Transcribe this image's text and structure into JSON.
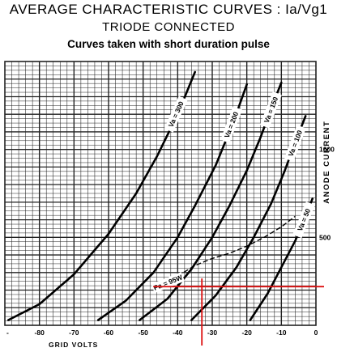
{
  "header": {
    "title_line1": "AVERAGE CHARACTERISTIC CURVES : Ia/Vg1",
    "title_line2": "TRIODE CONNECTED",
    "subtitle": "Curves taken with short duration pulse"
  },
  "chart_data": {
    "type": "line",
    "title": "AVERAGE CHARACTERISTIC CURVES : Ia/Vg1",
    "subtitle": "Curves taken with short duration pulse",
    "xlabel": "GRID VOLTS",
    "ylabel": "ANODE CURRENT",
    "xlim": [
      -90,
      0
    ],
    "ylim": [
      0,
      1500
    ],
    "x_ticks": [
      -80,
      -70,
      -60,
      -50,
      -40,
      -30,
      -20,
      -10,
      0
    ],
    "x_tick_labels": [
      "-80",
      "-70",
      "-60",
      "-50",
      "-40",
      "-30",
      "-20",
      "-10",
      "0"
    ],
    "y_ticks": [
      500,
      1000
    ],
    "y_tick_labels": [
      "500",
      "1000"
    ],
    "grid": true,
    "series": [
      {
        "name": "Va = 300",
        "x": [
          -89,
          -80,
          -70,
          -60,
          -52,
          -46,
          -40,
          -35
        ],
        "y": [
          30,
          120,
          290,
          520,
          750,
          960,
          1200,
          1440
        ]
      },
      {
        "name": "Va = 200",
        "x": [
          -63,
          -55,
          -47,
          -40,
          -35,
          -29,
          -24,
          -20
        ],
        "y": [
          30,
          140,
          300,
          500,
          680,
          910,
          1150,
          1370
        ]
      },
      {
        "name": "Va = 150",
        "x": [
          -51,
          -43,
          -36,
          -30,
          -25,
          -20,
          -16,
          -13,
          -10
        ],
        "y": [
          30,
          150,
          320,
          500,
          680,
          880,
          1070,
          1230,
          1380
        ]
      },
      {
        "name": "Va = 100",
        "x": [
          -36,
          -29,
          -23,
          -18,
          -13,
          -9,
          -6,
          -3
        ],
        "y": [
          30,
          170,
          330,
          500,
          690,
          880,
          1040,
          1190
        ]
      },
      {
        "name": "Va = 50",
        "x": [
          -19,
          -14,
          -10,
          -6,
          -3,
          -1
        ],
        "y": [
          30,
          180,
          330,
          480,
          620,
          720
        ]
      }
    ],
    "dissipation_curve": {
      "name": "Pa = 95W",
      "x": [
        -40,
        -35,
        -30,
        -25,
        -20,
        -15,
        -10,
        -6
      ],
      "y": [
        280,
        340,
        380,
        410,
        450,
        500,
        560,
        620
      ]
    },
    "operating_point": {
      "x": -33,
      "y": 220
    },
    "marker_color": "#dd1111",
    "curve_color": "#000000",
    "grid_color": "#222222"
  }
}
